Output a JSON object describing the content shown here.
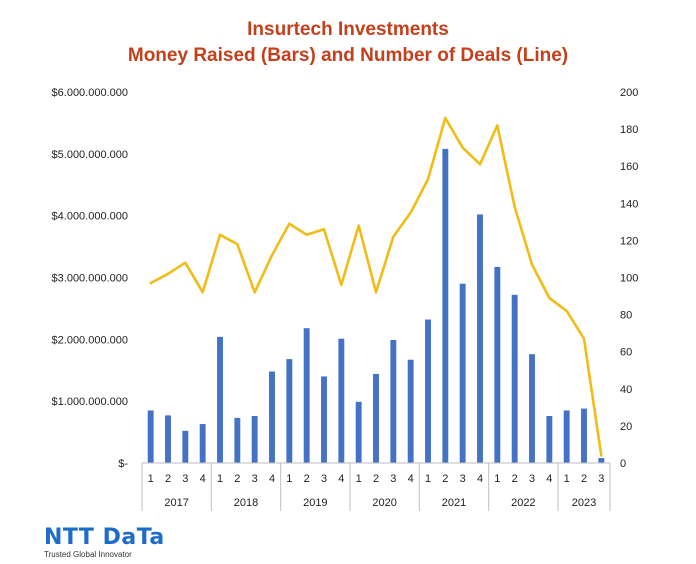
{
  "chart_data": {
    "type": "bar",
    "title": "Insurtech Investments",
    "subtitle": "Money Raised (Bars) and Number of Deals (Line)",
    "categories": [
      "1",
      "2",
      "3",
      "4",
      "1",
      "2",
      "3",
      "4",
      "1",
      "2",
      "3",
      "4",
      "1",
      "2",
      "3",
      "4",
      "1",
      "2",
      "3",
      "4",
      "1",
      "2",
      "3",
      "4",
      "1",
      "2",
      "3"
    ],
    "groups": [
      {
        "label": "2017",
        "count": 4
      },
      {
        "label": "2018",
        "count": 4
      },
      {
        "label": "2019",
        "count": 4
      },
      {
        "label": "2020",
        "count": 4
      },
      {
        "label": "2021",
        "count": 4
      },
      {
        "label": "2022",
        "count": 4
      },
      {
        "label": "2023",
        "count": 3
      }
    ],
    "series": [
      {
        "type": "bar",
        "axis": "left",
        "color": "#4472c4",
        "values": [
          850000000,
          770000000,
          520000000,
          630000000,
          2040000000,
          730000000,
          760000000,
          1480000000,
          1680000000,
          2180000000,
          1400000000,
          2010000000,
          990000000,
          1440000000,
          1990000000,
          1670000000,
          2320000000,
          5080000000,
          2900000000,
          4020000000,
          3170000000,
          2720000000,
          1760000000,
          760000000,
          850000000,
          880000000,
          80000000
        ]
      },
      {
        "type": "line",
        "axis": "right",
        "color": "#f2bc16",
        "values": [
          97,
          102,
          108,
          92,
          123,
          118,
          92,
          112,
          129,
          123,
          126,
          96,
          128,
          92,
          122,
          135,
          153,
          186,
          170,
          161,
          182,
          138,
          107,
          89,
          82,
          67,
          4
        ]
      }
    ],
    "y_left": {
      "min": 0,
      "max": 6000000000,
      "ticks": [
        0,
        1000000000,
        2000000000,
        3000000000,
        4000000000,
        5000000000,
        6000000000
      ],
      "tick_labels": [
        "$-",
        "$1.000.000.000",
        "$2.000.000.000",
        "$3.000.000.000",
        "$4.000.000.000",
        "$5.000.000.000",
        "$6.000.000.000"
      ]
    },
    "y_right": {
      "min": 0,
      "max": 200,
      "ticks": [
        0,
        20,
        40,
        60,
        80,
        100,
        120,
        140,
        160,
        180,
        200
      ],
      "tick_labels": [
        "0",
        "20",
        "40",
        "60",
        "80",
        "100",
        "120",
        "140",
        "160",
        "180",
        "200"
      ]
    },
    "grid": false,
    "legend": "none"
  },
  "branding": {
    "logo_text": "NTT DaTa",
    "tagline": "Trusted Global Innovator",
    "logo_color": "#1d6cc9"
  }
}
